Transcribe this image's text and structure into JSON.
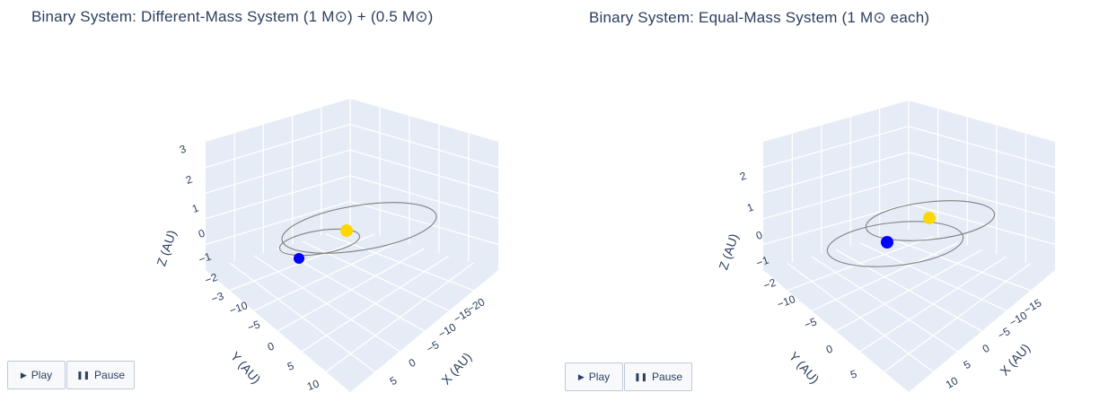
{
  "chart_data": [
    {
      "type": "scatter3d",
      "title": "Binary System: Different-Mass System (1 M⊙) + (0.5 M⊙)",
      "xlabel": "X (AU)",
      "ylabel": "Y (AU)",
      "zlabel": "Z (AU)",
      "x_ticks": [
        "−20",
        "−15",
        "−10",
        "−5",
        "0",
        "5"
      ],
      "y_ticks": [
        "−10",
        "−5",
        "0",
        "5",
        "10"
      ],
      "z_ticks": [
        "−3",
        "−2",
        "−1",
        "0",
        "1",
        "2",
        "3"
      ],
      "bodies": [
        {
          "color": "#ffd700",
          "role": "primary"
        },
        {
          "color": "#0000ff",
          "role": "secondary"
        }
      ],
      "orbit_color": "#808080",
      "controls": {
        "play_label": "Play",
        "pause_label": "Pause"
      }
    },
    {
      "type": "scatter3d",
      "title": "Binary System: Equal-Mass System (1 M⊙ each)",
      "xlabel": "X (AU)",
      "ylabel": "Y (AU)",
      "zlabel": "Z (AU)",
      "x_ticks": [
        "−15",
        "−10",
        "−5",
        "0",
        "5",
        "10"
      ],
      "y_ticks": [
        "−10",
        "−5",
        "0",
        "5"
      ],
      "z_ticks": [
        "−2",
        "−1",
        "0",
        "1",
        "2"
      ],
      "bodies": [
        {
          "color": "#ffd700",
          "role": "body-1"
        },
        {
          "color": "#0000ff",
          "role": "body-2"
        }
      ],
      "orbit_color": "#808080",
      "controls": {
        "play_label": "Play",
        "pause_label": "Pause"
      }
    }
  ]
}
